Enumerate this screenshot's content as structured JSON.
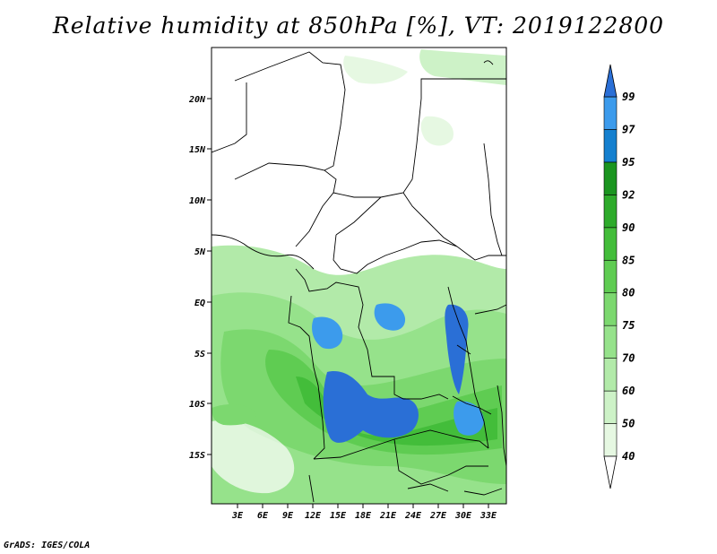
{
  "title": "Relative humidity at 850hPa [%], VT: 2019122800",
  "credit": "GrADS: IGES/COLA",
  "map": {
    "lat_ticks": [
      "20N",
      "15N",
      "10N",
      "5N",
      "EQ",
      "5S",
      "10S",
      "15S"
    ],
    "lon_ticks": [
      "3E",
      "6E",
      "9E",
      "12E",
      "15E",
      "18E",
      "21E",
      "24E",
      "27E",
      "30E",
      "33E"
    ]
  },
  "colorbar": {
    "levels": [
      "40",
      "50",
      "60",
      "70",
      "75",
      "80",
      "85",
      "90",
      "92",
      "95",
      "97",
      "99"
    ],
    "colors": [
      "#ffffff",
      "#e6f8e2",
      "#cdf2c7",
      "#b2eaa9",
      "#96e28b",
      "#7cd86f",
      "#5fcc52",
      "#43bd3a",
      "#2eab2b",
      "#1b9520",
      "#1580cf",
      "#3c9bec",
      "#2a6fd6"
    ]
  }
}
